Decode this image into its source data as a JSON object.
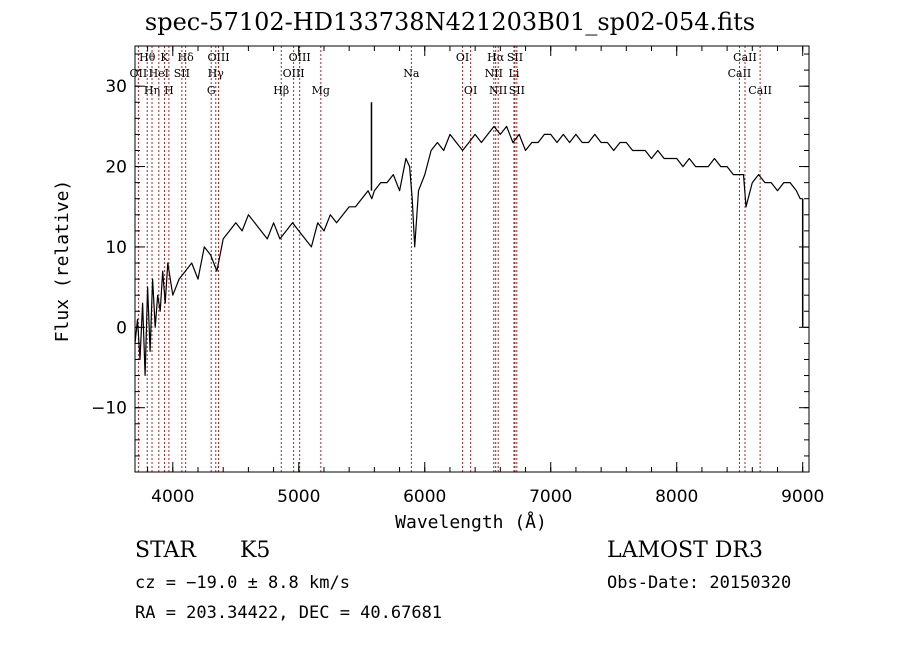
{
  "title": "spec-57102-HD133738N421203B01_sp02-054.fits",
  "info": {
    "object_class": "STAR",
    "subclass": "K5",
    "survey": "LAMOST DR3",
    "cz": "cz = −19.0 ± 8.8 km/s",
    "obs_date": "Obs-Date: 20150320",
    "ra_dec": "RA = 203.34422, DEC =  40.67681"
  },
  "chart_data": {
    "type": "line",
    "title": "spec-57102-HD133738N421203B01_sp02-054.fits",
    "xlabel": "Wavelength (Å)",
    "ylabel": "Flux (relative)",
    "xlim": [
      3700,
      9050
    ],
    "ylim": [
      -18,
      35
    ],
    "x_ticks": [
      4000,
      5000,
      6000,
      7000,
      8000,
      9000
    ],
    "y_ticks": [
      -10,
      0,
      10,
      20,
      30
    ],
    "y_tick_labels": [
      "−10",
      "0",
      "10",
      "20",
      "30"
    ],
    "series": [
      {
        "name": "flux",
        "x": [
          3700,
          3720,
          3740,
          3760,
          3780,
          3800,
          3820,
          3840,
          3860,
          3880,
          3900,
          3920,
          3940,
          3960,
          3980,
          4000,
          4050,
          4100,
          4150,
          4200,
          4250,
          4300,
          4350,
          4400,
          4450,
          4500,
          4550,
          4600,
          4650,
          4700,
          4750,
          4800,
          4850,
          4900,
          4950,
          5000,
          5050,
          5100,
          5150,
          5200,
          5250,
          5300,
          5350,
          5400,
          5450,
          5500,
          5550,
          5580,
          5600,
          5650,
          5700,
          5750,
          5800,
          5850,
          5880,
          5900,
          5920,
          5950,
          6000,
          6050,
          6100,
          6150,
          6200,
          6250,
          6300,
          6350,
          6400,
          6450,
          6500,
          6550,
          6600,
          6650,
          6700,
          6750,
          6800,
          6850,
          6900,
          6950,
          7000,
          7050,
          7100,
          7150,
          7200,
          7250,
          7300,
          7350,
          7400,
          7450,
          7500,
          7550,
          7600,
          7650,
          7700,
          7750,
          7800,
          7850,
          7900,
          7950,
          8000,
          8050,
          8100,
          8150,
          8200,
          8250,
          8300,
          8350,
          8400,
          8450,
          8500,
          8530,
          8550,
          8600,
          8650,
          8700,
          8750,
          8800,
          8850,
          8900,
          8950,
          8980,
          9000
        ],
        "y": [
          -2,
          1,
          -4,
          3,
          -6,
          5,
          -3,
          6,
          0,
          4,
          2,
          7,
          3,
          8,
          6,
          4,
          6,
          7,
          8,
          6,
          10,
          9,
          7,
          11,
          12,
          13,
          12,
          14,
          13,
          12,
          11,
          13,
          11,
          12,
          13,
          12,
          11,
          10,
          13,
          12,
          14,
          13,
          14,
          15,
          15,
          16,
          17,
          16,
          17,
          18,
          18,
          19,
          17,
          21,
          20,
          16,
          10,
          17,
          19,
          22,
          23,
          22,
          24,
          23,
          22,
          23,
          24,
          23,
          24,
          25,
          24,
          25,
          23,
          24,
          22,
          23,
          23,
          24,
          24,
          23,
          24,
          23,
          24,
          23,
          23,
          24,
          23,
          23,
          22,
          23,
          23,
          22,
          22,
          22,
          21,
          22,
          21,
          21,
          21,
          20,
          21,
          20,
          20,
          20,
          21,
          20,
          20,
          19,
          19,
          19,
          15,
          18,
          19,
          18,
          18,
          17,
          18,
          18,
          17,
          16,
          16
        ]
      }
    ],
    "spikes": [
      {
        "x": 5577,
        "from": 17,
        "to": 28
      },
      {
        "x": 9000,
        "from": 16,
        "to": 0
      }
    ],
    "lines": [
      {
        "label": "Hθ",
        "wl": 3797,
        "row": 0
      },
      {
        "label": "OII",
        "wl": 3727,
        "row": 1
      },
      {
        "label": "Hη",
        "wl": 3835,
        "row": 2
      },
      {
        "label": "HeI",
        "wl": 3889,
        "row": 1
      },
      {
        "label": "K",
        "wl": 3934,
        "row": 0
      },
      {
        "label": "H",
        "wl": 3969,
        "row": 2
      },
      {
        "label": "SII",
        "wl": 4072,
        "row": 1
      },
      {
        "label": "Hδ",
        "wl": 4102,
        "row": 0
      },
      {
        "label": "G",
        "wl": 4305,
        "row": 2
      },
      {
        "label": "Hγ",
        "wl": 4341,
        "row": 1
      },
      {
        "label": "OIII",
        "wl": 4363,
        "row": 0
      },
      {
        "label": "Hβ",
        "wl": 4861,
        "row": 2
      },
      {
        "label": "OIII",
        "wl": 4959,
        "row": 1
      },
      {
        "label": "OIII",
        "wl": 5007,
        "row": 0
      },
      {
        "label": "Mg",
        "wl": 5175,
        "row": 2
      },
      {
        "label": "Na",
        "wl": 5894,
        "row": 1
      },
      {
        "label": "OI",
        "wl": 6300,
        "row": 0
      },
      {
        "label": "OI",
        "wl": 6364,
        "row": 2
      },
      {
        "label": "NII",
        "wl": 6548,
        "row": 1
      },
      {
        "label": "Hα",
        "wl": 6563,
        "row": 0
      },
      {
        "label": "NII",
        "wl": 6583,
        "row": 2
      },
      {
        "label": "SII",
        "wl": 6716,
        "row": 0
      },
      {
        "label": "Li",
        "wl": 6708,
        "row": 1
      },
      {
        "label": "SII",
        "wl": 6731,
        "row": 2
      },
      {
        "label": "CaII",
        "wl": 8498,
        "row": 1
      },
      {
        "label": "CaII",
        "wl": 8542,
        "row": 0
      },
      {
        "label": "CaII",
        "wl": 8662,
        "row": 2
      }
    ],
    "colors": {
      "spectrum": "#000000",
      "line_markers": "#b22222",
      "axes": "#000000"
    }
  }
}
